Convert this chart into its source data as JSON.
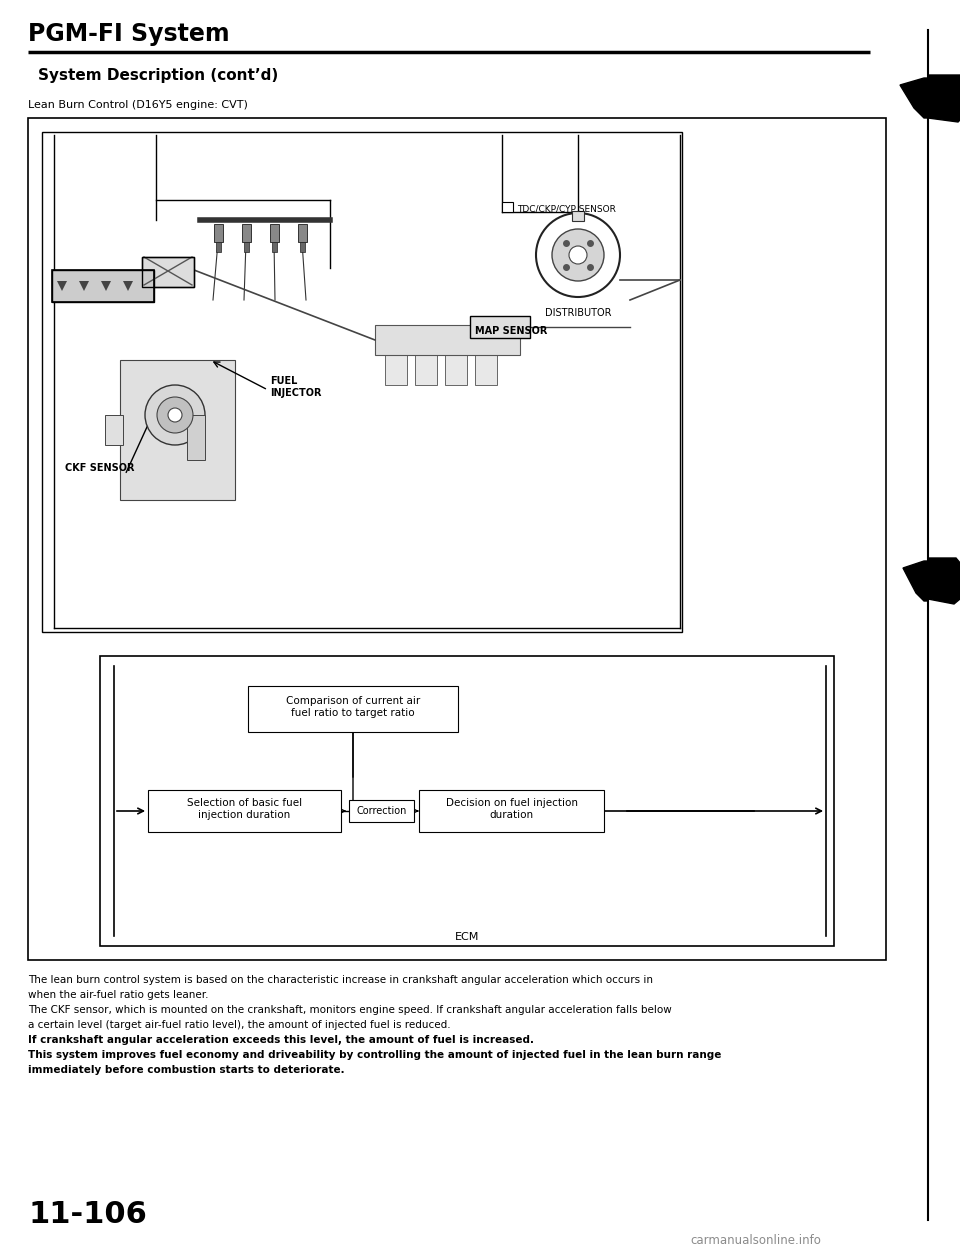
{
  "page_title": "PGM-FI System",
  "section_title": "System Description (cont’d)",
  "subsection_title": "Lean Burn Control (D16Y5 engine: CVT)",
  "page_number": "11-106",
  "ecm_label": "ECM",
  "labels": {
    "tdc": "TDC/CKP/CYP SENSOR",
    "distributor": "DISTRIBUTOR",
    "map_sensor": "MAP SENSOR",
    "fuel_injector": "FUEL\nINJECTOR",
    "ckf_sensor": "CKF SENSOR"
  },
  "ecm_boxes": {
    "comparison": "Comparison of current air\nfuel ratio to target ratio",
    "selection": "Selection of basic fuel\ninjection duration",
    "correction": "Correction",
    "decision": "Decision on fuel injection\nduration"
  },
  "body_text_normal": [
    "The lean burn control system is based on the characteristic increase in crankshaft angular acceleration which occurs in",
    "when the air-fuel ratio gets leaner.",
    "The CKF sensor, which is mounted on the crankshaft, monitors engine speed. If crankshaft angular acceleration falls below",
    "a certain level (target air-fuel ratio level), the amount of injected fuel is reduced."
  ],
  "body_text_bold": [
    "If crankshaft angular acceleration exceeds this level, the amount of fuel is increased.",
    "This system improves fuel economy and driveability by controlling the amount of injected fuel in the lean burn range",
    "immediately before combustion starts to deteriorate."
  ],
  "watermark": "carmanualsonline.info",
  "bg_color": "#ffffff",
  "text_color": "#000000"
}
